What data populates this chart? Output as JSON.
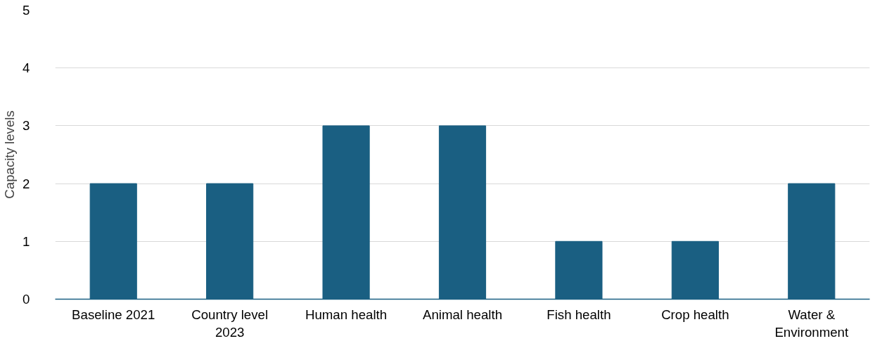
{
  "chart_data": {
    "type": "bar",
    "ylabel": "Capacity levels",
    "categories": [
      "Baseline 2021",
      "Country level 2023",
      "Human health",
      "Animal health",
      "Fish health",
      "Crop health",
      "Water & Environment"
    ],
    "values": [
      2,
      2,
      3,
      3,
      1,
      1,
      2
    ],
    "color": "#1a5f82",
    "ylim": [
      0,
      5
    ],
    "yticks": [
      0,
      1,
      2,
      3,
      4,
      5
    ],
    "grid": "y"
  }
}
